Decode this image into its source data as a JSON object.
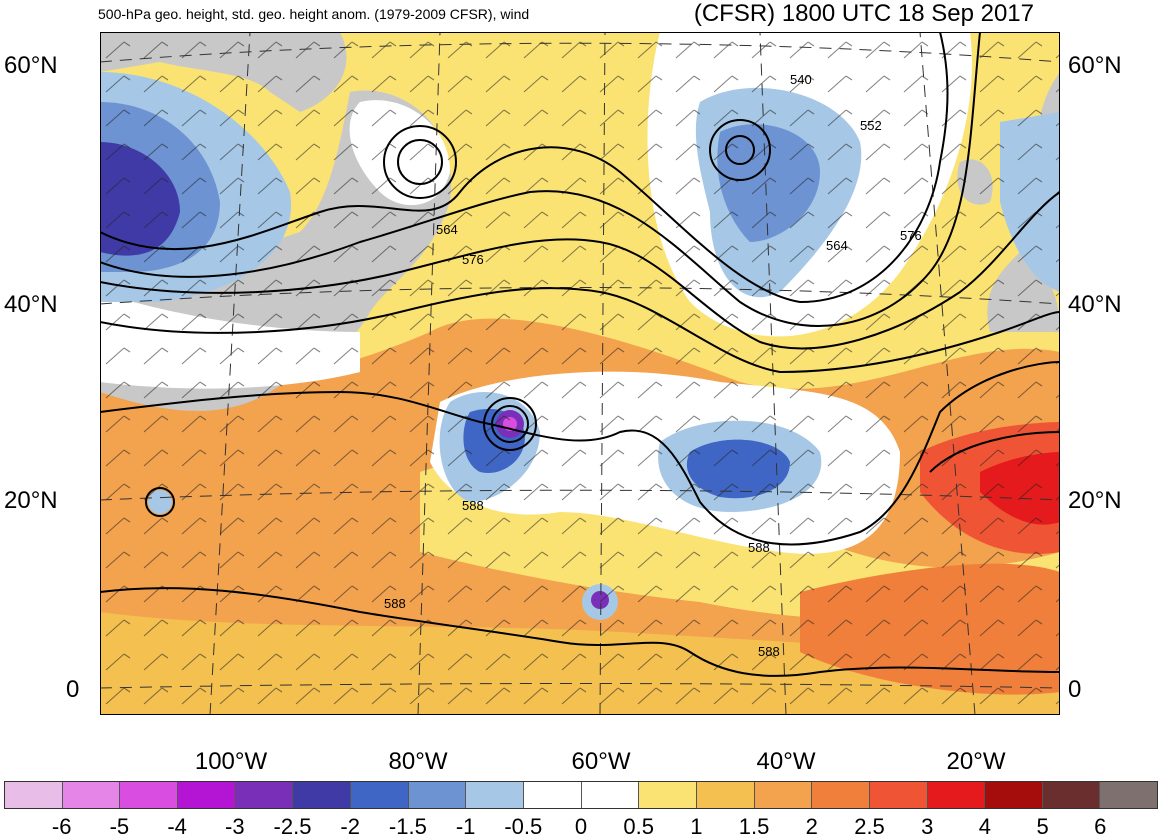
{
  "header": {
    "subtitle": "500-hPa geo. height, std. geo. height anom. (1979-2009 CFSR), wind",
    "title": "(CFSR) 1800 UTC 18 Sep 2017"
  },
  "map": {
    "lat_labels": [
      "60°N",
      "40°N",
      "20°N",
      "0"
    ],
    "lon_labels": [
      "100°W",
      "80°W",
      "60°W",
      "40°W",
      "20°W"
    ],
    "contour_labels": [
      "540",
      "552",
      "564",
      "564",
      "576",
      "576",
      "588",
      "588",
      "588",
      "588"
    ],
    "land_color": "#c8c8c8"
  },
  "legend": {
    "colors": [
      "#e8bde8",
      "#e585e8",
      "#d94ee0",
      "#b414d4",
      "#7a2fb8",
      "#3f3aa6",
      "#3f66c4",
      "#6d93d2",
      "#a6c8e6",
      "#ffffff",
      "#ffffff",
      "#fbe373",
      "#f4c050",
      "#f3a24e",
      "#ef7f3a",
      "#ef5535",
      "#e41a1c",
      "#a50d0d",
      "#6b2e2e",
      "#7d706e"
    ],
    "ticks": [
      "-6",
      "-5",
      "-4",
      "-3",
      "-2.5",
      "-2",
      "-1.5",
      "-1",
      "-0.5",
      "0",
      "0.5",
      "1",
      "1.5",
      "2",
      "2.5",
      "3",
      "4",
      "5",
      "6"
    ]
  }
}
